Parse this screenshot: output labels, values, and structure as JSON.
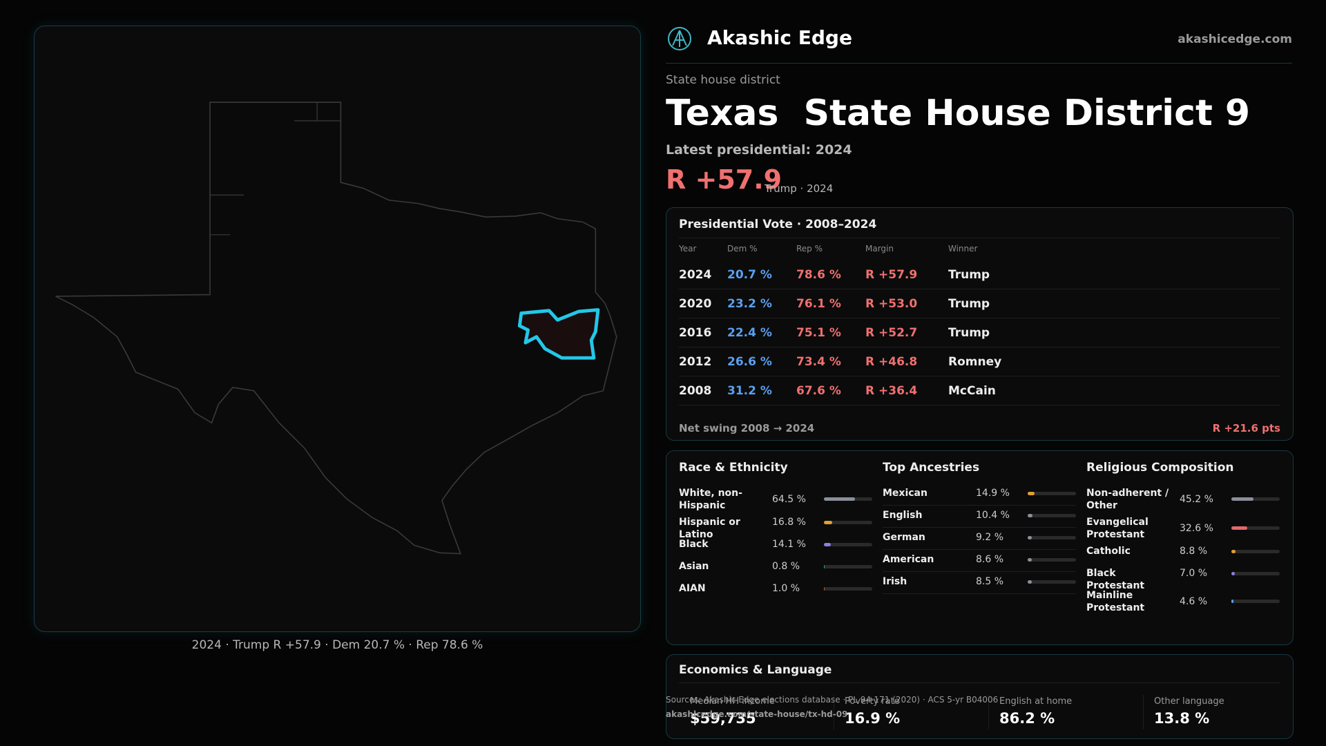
{
  "header": {
    "brand": "Akashic Edge",
    "site": "akashicedge.com"
  },
  "district": {
    "kicker": "State house district",
    "title_state": "Texas",
    "title_name": "State House District 9",
    "latest": "Latest presidential: 2024",
    "margin": "R +57.9",
    "margin_note": "Trump · 2024"
  },
  "map": {
    "caption": "2024 · Trump R +57.9 · Dem 20.7 % · Rep 78.6 %"
  },
  "presidential": {
    "title": "Presidential Vote · 2008–2024",
    "columns": [
      "Year",
      "Dem %",
      "Rep %",
      "Margin",
      "Winner"
    ],
    "rows": [
      [
        "2024",
        "20.7 %",
        "78.6 %",
        "R +57.9",
        "Trump"
      ],
      [
        "2020",
        "23.2 %",
        "76.1 %",
        "R +53.0",
        "Trump"
      ],
      [
        "2016",
        "22.4 %",
        "75.1 %",
        "R +52.7",
        "Trump"
      ],
      [
        "2012",
        "26.6 %",
        "73.4 %",
        "R +46.8",
        "Romney"
      ],
      [
        "2008",
        "31.2 %",
        "67.6 %",
        "R +36.4",
        "McCain"
      ]
    ],
    "swing_label": "Net swing 2008 → 2024",
    "swing_value": "R +21.6 pts"
  },
  "race": {
    "title": "Race & Ethnicity",
    "rows": [
      {
        "name": "White, non-Hispanic",
        "value": 64.5,
        "label": "64.5 %",
        "color": "#8a8f9a"
      },
      {
        "name": "Hispanic or Latino",
        "value": 16.8,
        "label": "16.8 %",
        "color": "#e0a030"
      },
      {
        "name": "Black",
        "value": 14.1,
        "label": "14.1 %",
        "color": "#8b7fe0"
      },
      {
        "name": "Asian",
        "value": 0.8,
        "label": "0.8 %",
        "color": "#2a9d8f"
      },
      {
        "name": "AIAN",
        "value": 1.0,
        "label": "1.0 %",
        "color": "#c0562a"
      }
    ]
  },
  "ancestry": {
    "title": "Top Ancestries",
    "rows": [
      {
        "name": "Mexican",
        "value": 14.9,
        "label": "14.9 %",
        "color": "#e0a030"
      },
      {
        "name": "English",
        "value": 10.4,
        "label": "10.4 %",
        "color": "#8a8f9a"
      },
      {
        "name": "German",
        "value": 9.2,
        "label": "9.2 %",
        "color": "#8a8f9a"
      },
      {
        "name": "American",
        "value": 8.6,
        "label": "8.6 %",
        "color": "#8a8f9a"
      },
      {
        "name": "Irish",
        "value": 8.5,
        "label": "8.5 %",
        "color": "#8a8f9a"
      }
    ]
  },
  "religion": {
    "title": "Religious Composition",
    "rows": [
      {
        "name": "Non-adherent / Other",
        "value": 45.2,
        "label": "45.2 %",
        "color": "#8a8f9a"
      },
      {
        "name": "Evangelical Protestant",
        "value": 32.6,
        "label": "32.6 %",
        "color": "#e06a6a"
      },
      {
        "name": "Catholic",
        "value": 8.8,
        "label": "8.8 %",
        "color": "#e0a030"
      },
      {
        "name": "Black Protestant",
        "value": 7.0,
        "label": "7.0 %",
        "color": "#8b7fe0"
      },
      {
        "name": "Mainline Protestant",
        "value": 4.6,
        "label": "4.6 %",
        "color": "#5aa0f0"
      }
    ]
  },
  "economics": {
    "title": "Economics & Language",
    "items": [
      {
        "label": "Median HH income",
        "value": "$59,735"
      },
      {
        "label": "Poverty rate",
        "value": "16.9 %"
      },
      {
        "label": "English at home",
        "value": "86.2 %"
      },
      {
        "label": "Other language",
        "value": "13.8 %"
      }
    ]
  },
  "footer": {
    "source": "Sources: Akashic Edge elections database · PL 94-171 (2020) · ACS 5-yr B04006",
    "url": "akashicedge.com/state-house/tx-hd-09"
  }
}
